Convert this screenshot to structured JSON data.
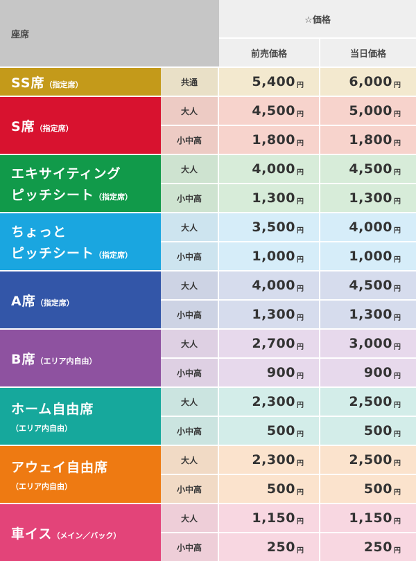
{
  "header": {
    "seat": "座席",
    "price_group": "☆価格",
    "advance": "前売価格",
    "same_day": "当日価格"
  },
  "yen": "円",
  "rows": [
    {
      "seat_line1_big": "SS席",
      "seat_line1_small": "（指定席）",
      "seat_line2_big": "",
      "seat_line2_small": "",
      "color": "#c49a1a",
      "tint": "#f3e9cf",
      "prices": [
        {
          "cat": "共通",
          "advance": "5,400",
          "same_day": "6,000"
        }
      ]
    },
    {
      "seat_line1_big": "S席",
      "seat_line1_small": "（指定席）",
      "seat_line2_big": "",
      "seat_line2_small": "",
      "color": "#d8122f",
      "tint": "#f7d3cc",
      "prices": [
        {
          "cat": "大人",
          "advance": "4,500",
          "same_day": "5,000"
        },
        {
          "cat": "小中高",
          "advance": "1,800",
          "same_day": "1,800"
        }
      ]
    },
    {
      "seat_line1_big": "エキサイティング",
      "seat_line1_small": "",
      "seat_line2_big": "ピッチシート",
      "seat_line2_small": "（指定席）",
      "color": "#119a4a",
      "tint": "#d7ecd9",
      "prices": [
        {
          "cat": "大人",
          "advance": "4,000",
          "same_day": "4,500"
        },
        {
          "cat": "小中高",
          "advance": "1,300",
          "same_day": "1,300"
        }
      ]
    },
    {
      "seat_line1_big": "ちょっと",
      "seat_line1_small": "",
      "seat_line2_big": "ピッチシート",
      "seat_line2_small": "（指定席）",
      "color": "#1aa6e0",
      "tint": "#d6edf9",
      "prices": [
        {
          "cat": "大人",
          "advance": "3,500",
          "same_day": "4,000"
        },
        {
          "cat": "小中高",
          "advance": "1,000",
          "same_day": "1,000"
        }
      ]
    },
    {
      "seat_line1_big": "A席",
      "seat_line1_small": "（指定席）",
      "seat_line2_big": "",
      "seat_line2_small": "",
      "color": "#3356a8",
      "tint": "#d6dced",
      "prices": [
        {
          "cat": "大人",
          "advance": "4,000",
          "same_day": "4,500"
        },
        {
          "cat": "小中高",
          "advance": "1,300",
          "same_day": "1,300"
        }
      ]
    },
    {
      "seat_line1_big": "B席",
      "seat_line1_small": "（エリア内自由）",
      "seat_line2_big": "",
      "seat_line2_small": "",
      "color": "#8e52a0",
      "tint": "#e7d9ec",
      "prices": [
        {
          "cat": "大人",
          "advance": "2,700",
          "same_day": "3,000"
        },
        {
          "cat": "小中高",
          "advance": "900",
          "same_day": "900"
        }
      ]
    },
    {
      "seat_line1_big": "ホーム自由席",
      "seat_line1_small": "",
      "seat_line2_big": "",
      "seat_line2_small": "（エリア内自由）",
      "color": "#16a89c",
      "tint": "#d3ede9",
      "prices": [
        {
          "cat": "大人",
          "advance": "2,300",
          "same_day": "2,500"
        },
        {
          "cat": "小中高",
          "advance": "500",
          "same_day": "500"
        }
      ]
    },
    {
      "seat_line1_big": "アウェイ自由席",
      "seat_line1_small": "",
      "seat_line2_big": "",
      "seat_line2_small": "（エリア内自由）",
      "color": "#ee7a12",
      "tint": "#fbe3cd",
      "prices": [
        {
          "cat": "大人",
          "advance": "2,300",
          "same_day": "2,500"
        },
        {
          "cat": "小中高",
          "advance": "500",
          "same_day": "500"
        }
      ]
    },
    {
      "seat_line1_big": "車イス",
      "seat_line1_small": "（メイン／バック）",
      "seat_line2_big": "",
      "seat_line2_small": "",
      "color": "#e34479",
      "tint": "#f8d7e1",
      "prices": [
        {
          "cat": "大人",
          "advance": "1,150",
          "same_day": "1,150"
        },
        {
          "cat": "小中高",
          "advance": "250",
          "same_day": "250"
        }
      ]
    }
  ]
}
